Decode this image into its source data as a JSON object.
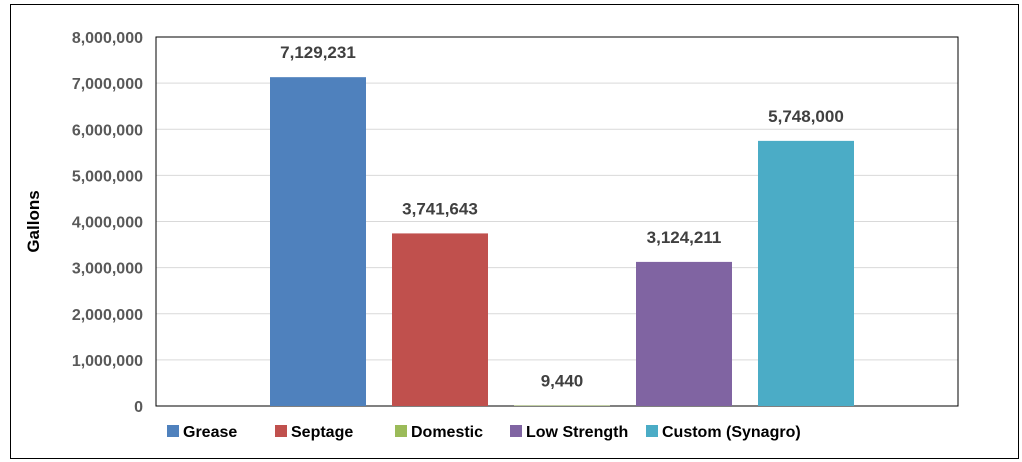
{
  "chart_data": {
    "type": "bar",
    "categories": [
      "Grease",
      "Septage",
      "Domestic",
      "Low Strength",
      "Custom (Synagro)"
    ],
    "values": [
      7129231,
      3741643,
      9440,
      3124211,
      5748000
    ],
    "value_labels": [
      "7,129,231",
      "3,741,643",
      "9,440",
      "3,124,211",
      "5,748,000"
    ],
    "colors": [
      "#4F81BD",
      "#C0504D",
      "#9BBB59",
      "#8064A2",
      "#4BACC6"
    ],
    "ylabel": "Gallons",
    "xlabel": "",
    "ylim": [
      0,
      8000000
    ],
    "yticks": [
      0,
      1000000,
      2000000,
      3000000,
      4000000,
      5000000,
      6000000,
      7000000,
      8000000
    ],
    "ytick_labels": [
      "0",
      "1,000,000",
      "2,000,000",
      "3,000,000",
      "4,000,000",
      "5,000,000",
      "6,000,000",
      "7,000,000",
      "8,000,000"
    ],
    "grid": true,
    "legend": "bottom"
  }
}
